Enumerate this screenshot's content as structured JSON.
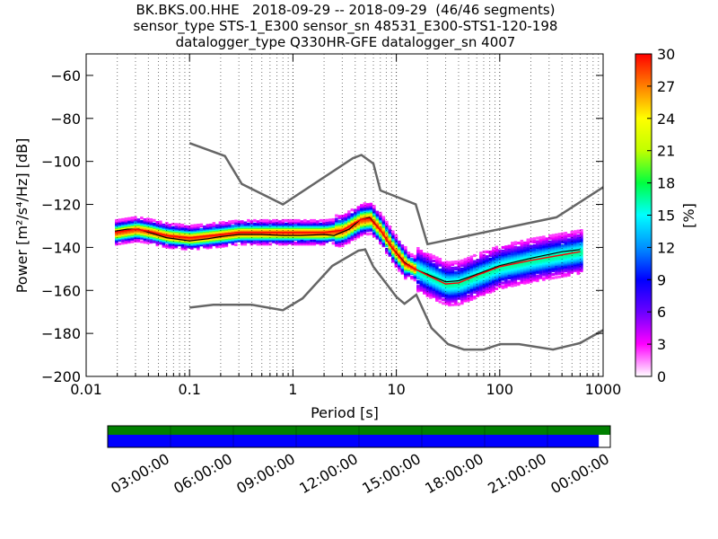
{
  "title": {
    "line1": "BK.BKS.00.HHE   2018-09-29 -- 2018-09-29  (46/46 segments)",
    "line2": "sensor_type STS-1_E300 sensor_sn 48531_E300-STS1-120-198",
    "line3": "datalogger_type Q330HR-GFE datalogger_sn 4007"
  },
  "chart_data": [
    {
      "type": "heatmap",
      "description_kind": "probabilistic power spectral density",
      "xlabel": "Period [s]",
      "ylabel": "Power [m²/s⁴/Hz] [dB]",
      "xscale": "log",
      "xlim": [
        0.01,
        1000
      ],
      "ylim": [
        -200,
        -50
      ],
      "xticks": [
        0.01,
        0.1,
        1,
        10,
        100,
        1000
      ],
      "xtick_labels": [
        "0.01",
        "0.1",
        "1",
        "10",
        "100",
        "1000"
      ],
      "yticks": [
        -200,
        -180,
        -160,
        -140,
        -120,
        -100,
        -80,
        -60
      ],
      "ytick_labels": [
        "−200",
        "−180",
        "−160",
        "−140",
        "−120",
        "−100",
        "−80",
        "−60"
      ],
      "grid": "dotted vertical",
      "colorbar": {
        "label": "[%]",
        "range": [
          0,
          30
        ],
        "ticks": [
          "0",
          "3",
          "6",
          "9",
          "12",
          "15",
          "18",
          "21",
          "24",
          "27",
          "30"
        ],
        "colormap": [
          "#ffffff",
          "#ff00ff",
          "#6a00ff",
          "#0000ff",
          "#0090ff",
          "#00ffff",
          "#00ff40",
          "#c0ff00",
          "#ffff00",
          "#ff8000",
          "#ff0000"
        ]
      },
      "noise_models": [
        {
          "name": "high",
          "color": "#666666",
          "points": [
            [
              0.1,
              -91.5
            ],
            [
              0.22,
              -97.5
            ],
            [
              0.32,
              -110.5
            ],
            [
              0.8,
              -120
            ],
            [
              3.8,
              -98.5
            ],
            [
              4.6,
              -97
            ],
            [
              6,
              -101
            ],
            [
              7,
              -113.5
            ],
            [
              15.4,
              -120
            ],
            [
              20,
              -138.5
            ],
            [
              354,
              -126
            ],
            [
              1000,
              -112
            ]
          ]
        },
        {
          "name": "low",
          "color": "#666666",
          "points": [
            [
              0.1,
              -168
            ],
            [
              0.17,
              -166.7
            ],
            [
              0.4,
              -166.7
            ],
            [
              0.8,
              -169.2
            ],
            [
              1.24,
              -163.7
            ],
            [
              2.4,
              -148.6
            ],
            [
              4.3,
              -141.5
            ],
            [
              5,
              -141
            ],
            [
              6,
              -149
            ],
            [
              10,
              -163
            ],
            [
              12,
              -166.2
            ],
            [
              15.6,
              -162
            ],
            [
              21.9,
              -177.5
            ],
            [
              31.6,
              -185
            ],
            [
              45,
              -187.5
            ],
            [
              70,
              -187.5
            ],
            [
              101,
              -185
            ],
            [
              154,
              -185
            ],
            [
              328,
              -187.5
            ],
            [
              600,
              -184.5
            ],
            [
              1000,
              -178.5
            ]
          ]
        }
      ],
      "mean_curve": {
        "color": "#000000",
        "points": [
          [
            0.019,
            -132.5
          ],
          [
            0.025,
            -131.5
          ],
          [
            0.032,
            -131.5
          ],
          [
            0.04,
            -133
          ],
          [
            0.06,
            -135.5
          ],
          [
            0.1,
            -137
          ],
          [
            0.15,
            -136
          ],
          [
            0.2,
            -135
          ],
          [
            0.3,
            -134
          ],
          [
            0.5,
            -134
          ],
          [
            0.8,
            -134.5
          ],
          [
            1.2,
            -134.5
          ],
          [
            2,
            -134
          ],
          [
            2.5,
            -134.5
          ],
          [
            3.5,
            -131.5
          ],
          [
            4.5,
            -127
          ],
          [
            5.5,
            -126
          ],
          [
            7,
            -132
          ],
          [
            9,
            -140
          ],
          [
            12,
            -147
          ],
          [
            15,
            -150
          ],
          [
            20,
            -152.5
          ],
          [
            30,
            -156
          ],
          [
            40,
            -155.5
          ],
          [
            60,
            -152.5
          ],
          [
            100,
            -148.5
          ],
          [
            200,
            -145
          ],
          [
            400,
            -142
          ],
          [
            600,
            -141
          ]
        ]
      },
      "mode_curve": {
        "color": "#ff0000",
        "points": [
          [
            0.019,
            -133
          ],
          [
            0.03,
            -131.5
          ],
          [
            0.04,
            -132.5
          ],
          [
            0.06,
            -134.5
          ],
          [
            0.1,
            -135.5
          ],
          [
            0.2,
            -134
          ],
          [
            0.3,
            -133
          ],
          [
            0.5,
            -133
          ],
          [
            1,
            -133
          ],
          [
            2,
            -133
          ],
          [
            3,
            -132
          ],
          [
            4.5,
            -127
          ],
          [
            5.5,
            -126.5
          ],
          [
            7,
            -132
          ],
          [
            9,
            -140
          ],
          [
            12,
            -147.5
          ],
          [
            20,
            -153
          ],
          [
            30,
            -157
          ],
          [
            40,
            -156.5
          ],
          [
            60,
            -153
          ],
          [
            100,
            -149
          ],
          [
            200,
            -146
          ],
          [
            600,
            -142
          ]
        ]
      }
    },
    {
      "type": "timeline",
      "description_kind": "data coverage",
      "tick_labels": [
        "03:00:00",
        "06:00:00",
        "09:00:00",
        "12:00:00",
        "15:00:00",
        "18:00:00",
        "21:00:00",
        "00:00:00"
      ],
      "span_hours": [
        0,
        24
      ],
      "segments": [
        {
          "color": "#008000",
          "start_hours": 0,
          "end_hours": 24
        },
        {
          "color": "#0000ff",
          "start_hours": 0,
          "end_hours": 23.45
        }
      ]
    }
  ]
}
